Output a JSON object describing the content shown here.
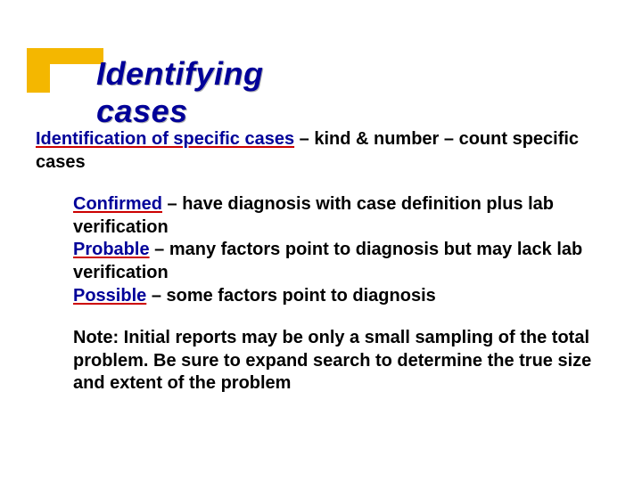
{
  "slide": {
    "title": "Identifying cases",
    "title_color": "#000099",
    "title_shadow_color": "#b0b0b0",
    "title_fontsize": 36,
    "decoration_color": "#f4b700",
    "body_fontsize": 20,
    "body_color": "#000000",
    "underline_color": "#cc0000",
    "label_color": "#000099",
    "background_color": "#ffffff"
  },
  "intro": {
    "label": "Identification of specific cases",
    "rest": " – kind & number – count specific cases"
  },
  "defs": {
    "confirmed_label": "Confirmed",
    "confirmed_rest": " – have diagnosis with case definition plus lab verification",
    "probable_label": "Probable",
    "probable_rest": " – many factors point to diagnosis but may lack lab verification",
    "possible_label": "Possible",
    "possible_rest": " – some factors point to diagnosis"
  },
  "note": {
    "text": "Note:  Initial reports may be only a small sampling of the total problem.  Be sure to expand search to determine the true size and extent of the problem"
  }
}
